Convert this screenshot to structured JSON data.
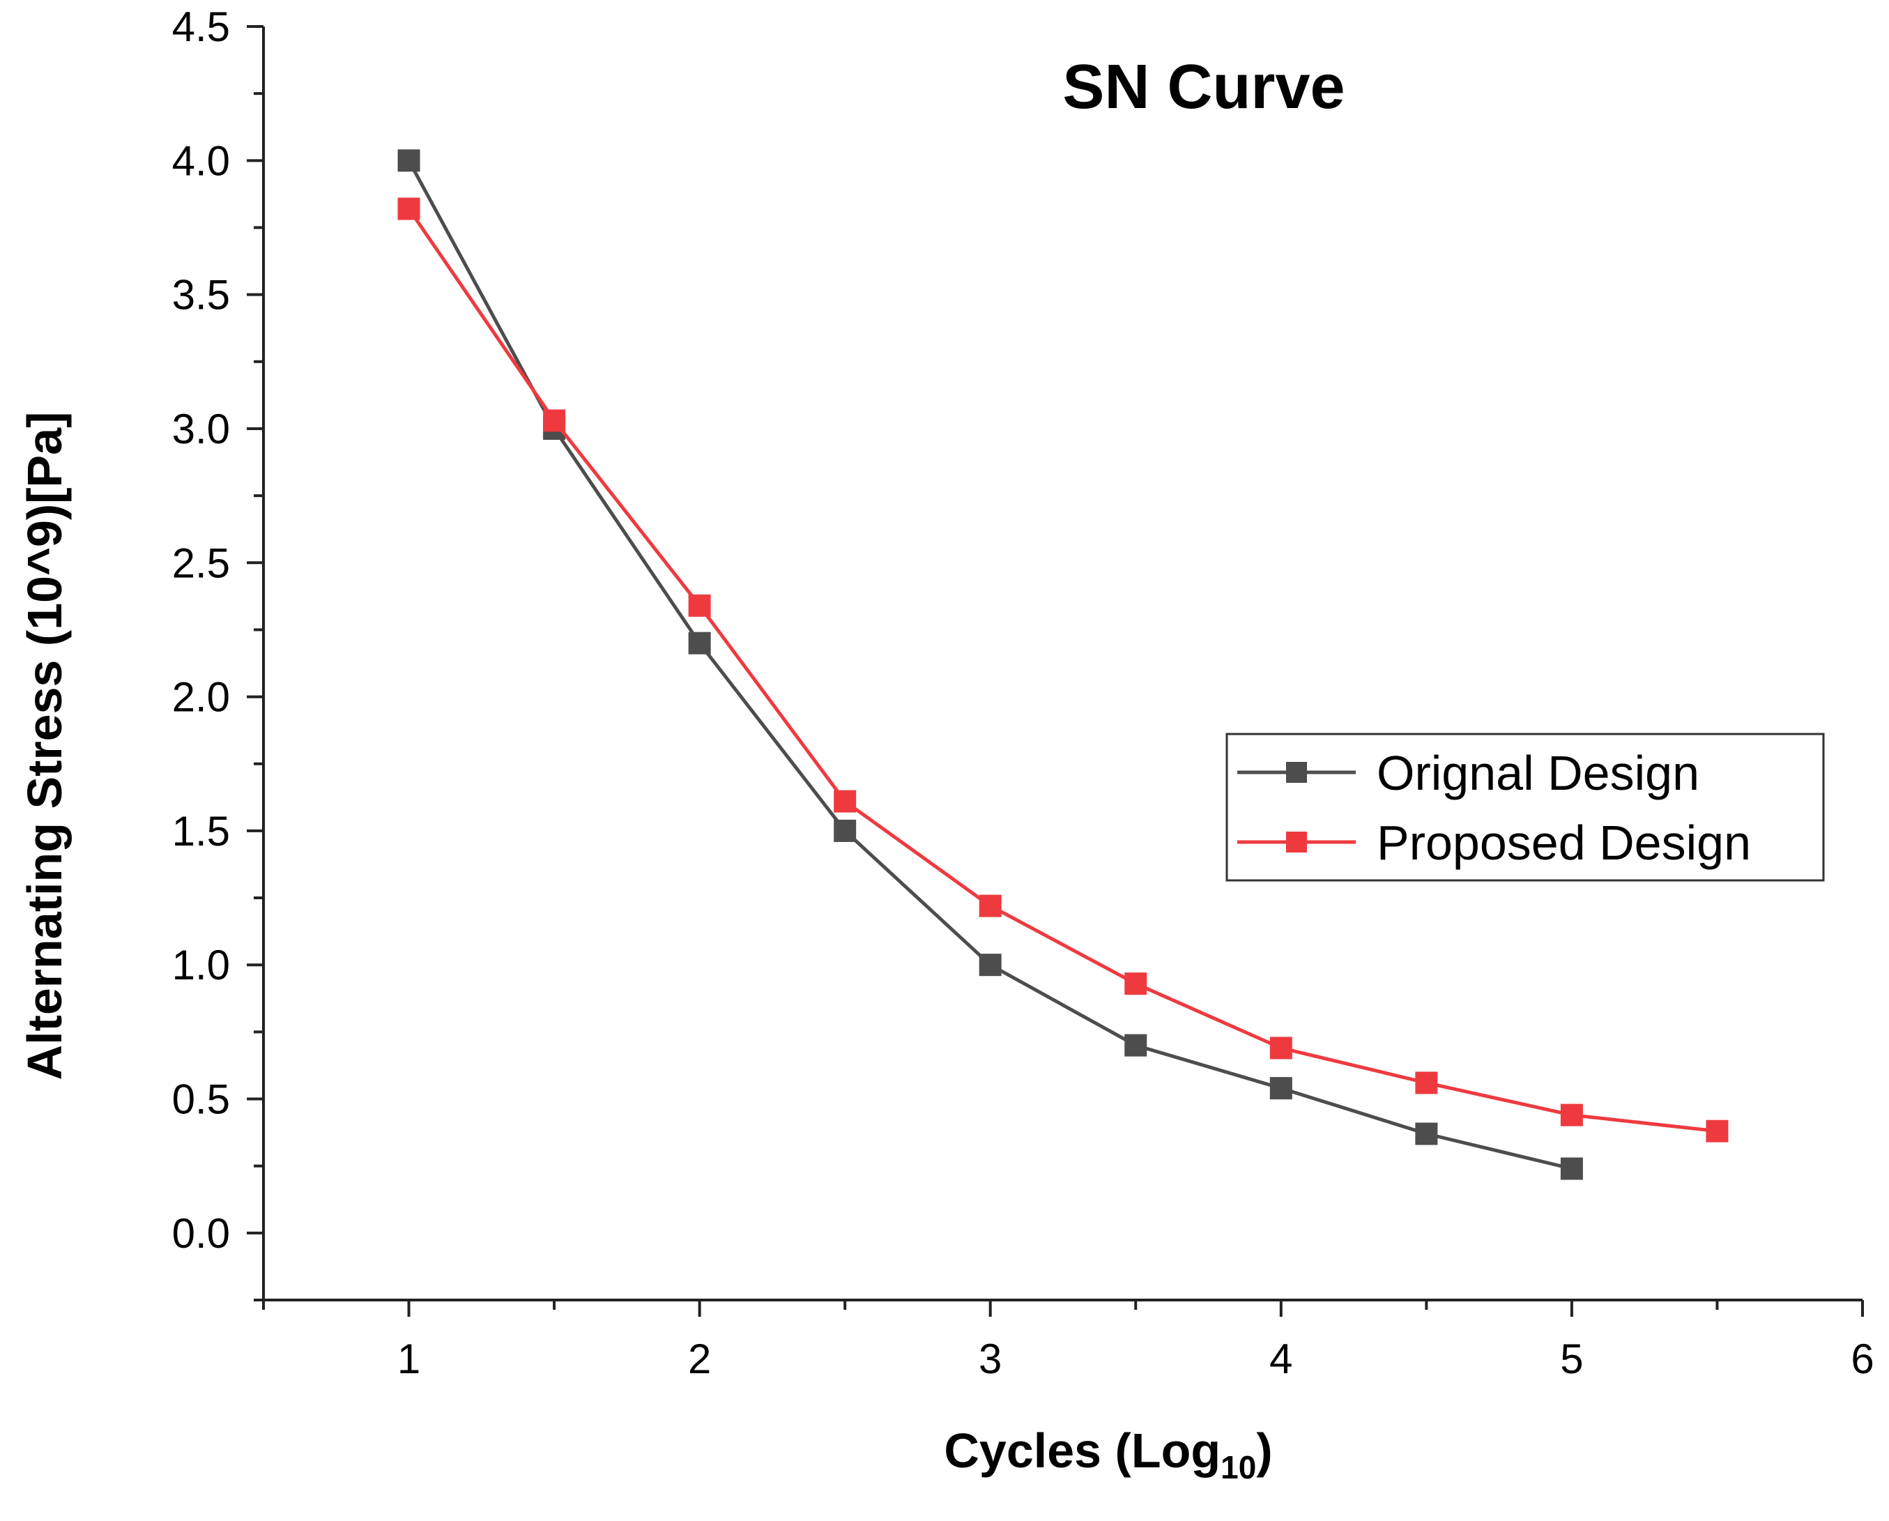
{
  "chart_data": {
    "type": "line",
    "title": "SN Curve",
    "xlabel": "Cycles (Log",
    "xlabel_sub": "10",
    "xlabel_end": ")",
    "ylabel": "Alternating Stress (10^9)[Pa]",
    "xlim": [
      0.5,
      6
    ],
    "ylim": [
      -0.25,
      4.5
    ],
    "x_ticks": [
      1,
      2,
      3,
      4,
      5,
      6
    ],
    "x_tick_labels": [
      "1",
      "2",
      "3",
      "4",
      "5",
      "6"
    ],
    "y_ticks": [
      0.0,
      0.5,
      1.0,
      1.5,
      2.0,
      2.5,
      3.0,
      3.5,
      4.0,
      4.5
    ],
    "y_tick_labels": [
      "0.0",
      "0.5",
      "1.0",
      "1.5",
      "2.0",
      "2.5",
      "3.0",
      "3.5",
      "4.0",
      "4.5"
    ],
    "grid": false,
    "legend_position": "right",
    "series": [
      {
        "name": "Orignal Design",
        "color": "#4d4d4d",
        "marker": "square",
        "x": [
          1,
          1.5,
          2,
          2.5,
          3,
          3.5,
          4,
          4.5,
          5
        ],
        "values": [
          4.0,
          3.0,
          2.2,
          1.5,
          1.0,
          0.7,
          0.54,
          0.37,
          0.24
        ]
      },
      {
        "name": "Proposed Design",
        "color": "#ee3a3f",
        "marker": "square",
        "x": [
          1,
          1.5,
          2,
          2.5,
          3,
          3.5,
          4,
          4.5,
          5,
          5.5
        ],
        "values": [
          3.82,
          3.03,
          2.34,
          1.61,
          1.22,
          0.93,
          0.69,
          0.56,
          0.44,
          0.38
        ]
      }
    ]
  }
}
